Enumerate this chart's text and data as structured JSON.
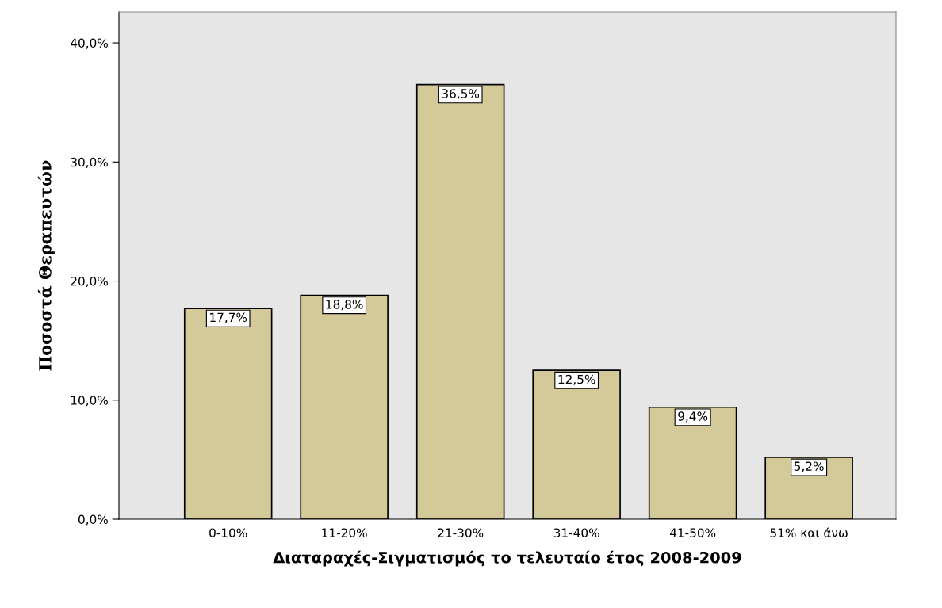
{
  "chart_data": {
    "type": "bar",
    "categories": [
      "0-10%",
      "11-20%",
      "21-30%",
      "31-40%",
      "41-50%",
      "51% και άνω"
    ],
    "values": [
      17.7,
      18.8,
      36.5,
      12.5,
      9.4,
      5.2
    ],
    "value_labels": [
      "17,7%",
      "18,8%",
      "36,5%",
      "12,5%",
      "9,4%",
      "5,2%"
    ],
    "color": "#d4c998",
    "xlabel": "Διαταραχές-Σιγματισμός το τελευταίο έτος 2008-2009",
    "ylabel": "Ποσοστά Θεραπευτών",
    "ylim": [
      0,
      42.6
    ],
    "yticks": [
      {
        "value": 0,
        "label": "0,0%"
      },
      {
        "value": 10,
        "label": "10,0%"
      },
      {
        "value": 20,
        "label": "20,0%"
      },
      {
        "value": 30,
        "label": "30,0%"
      },
      {
        "value": 40,
        "label": "40,0%"
      }
    ],
    "grid": false
  }
}
